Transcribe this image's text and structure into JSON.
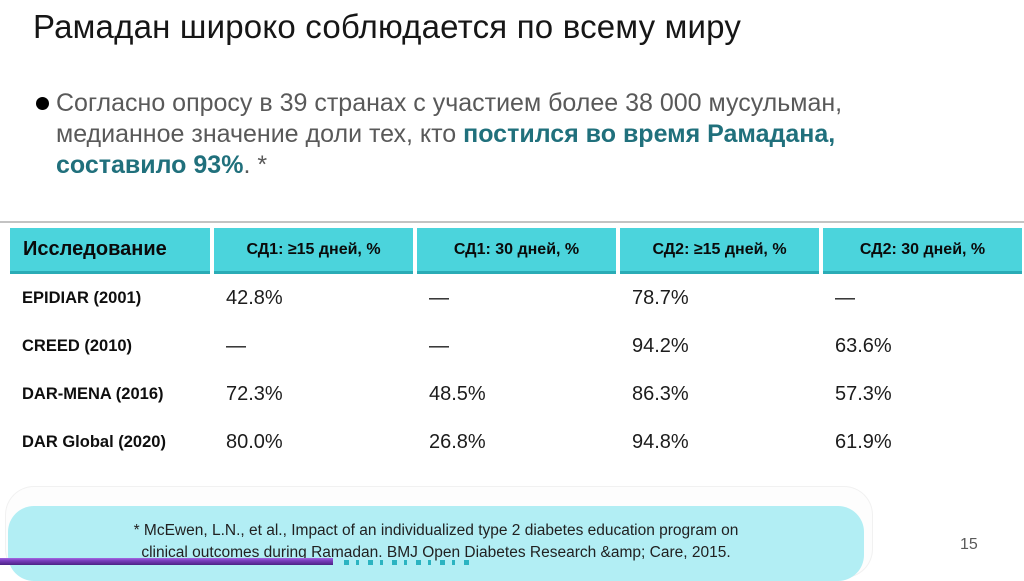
{
  "slide": {
    "title": "Рамадан широко соблюдается по всему миру",
    "page_number": "15"
  },
  "bullet": {
    "line1": "Согласно опросу в 39 странах с участием более 38 000 мусульман,",
    "line2_gray": "медианное значение доли тех, кто ",
    "line2_teal": "постился во время Рамадана,",
    "line3_teal": "составило 93%",
    "line3_tail": ". *"
  },
  "table": {
    "headers": [
      "Исследование",
      "СД1: ≥15 дней, %",
      "СД1: 30 дней, %",
      "СД2: ≥15 дней, %",
      "СД2: 30 дней, %"
    ],
    "rows": [
      {
        "study": "EPIDIAR (2001)",
        "values": [
          "42.8%",
          "—",
          "78.7%",
          "—"
        ]
      },
      {
        "study": "CREED (2010)",
        "values": [
          "—",
          "—",
          "94.2%",
          "63.6%"
        ]
      },
      {
        "study": "DAR-MENA (2016)",
        "values": [
          "72.3%",
          "48.5%",
          "86.3%",
          "57.3%"
        ]
      },
      {
        "study": "DAR Global (2020)",
        "values": [
          "80.0%",
          "26.8%",
          "94.8%",
          "61.9%"
        ]
      }
    ]
  },
  "footnote": {
    "line1": "* McEwen, L.N., et al., Impact of an individualized type 2 diabetes education program on",
    "line2": "clinical outcomes during Ramadan. BMJ Open Diabetes Research &amp; Care, 2015."
  },
  "colors": {
    "header_bg": "#4bd4dc",
    "header_border": "#2aacb6",
    "accent_teal": "#20707c",
    "body_gray": "#595959",
    "footnote_bg": "#b2eef4",
    "purple_bar": "#4b2385"
  }
}
